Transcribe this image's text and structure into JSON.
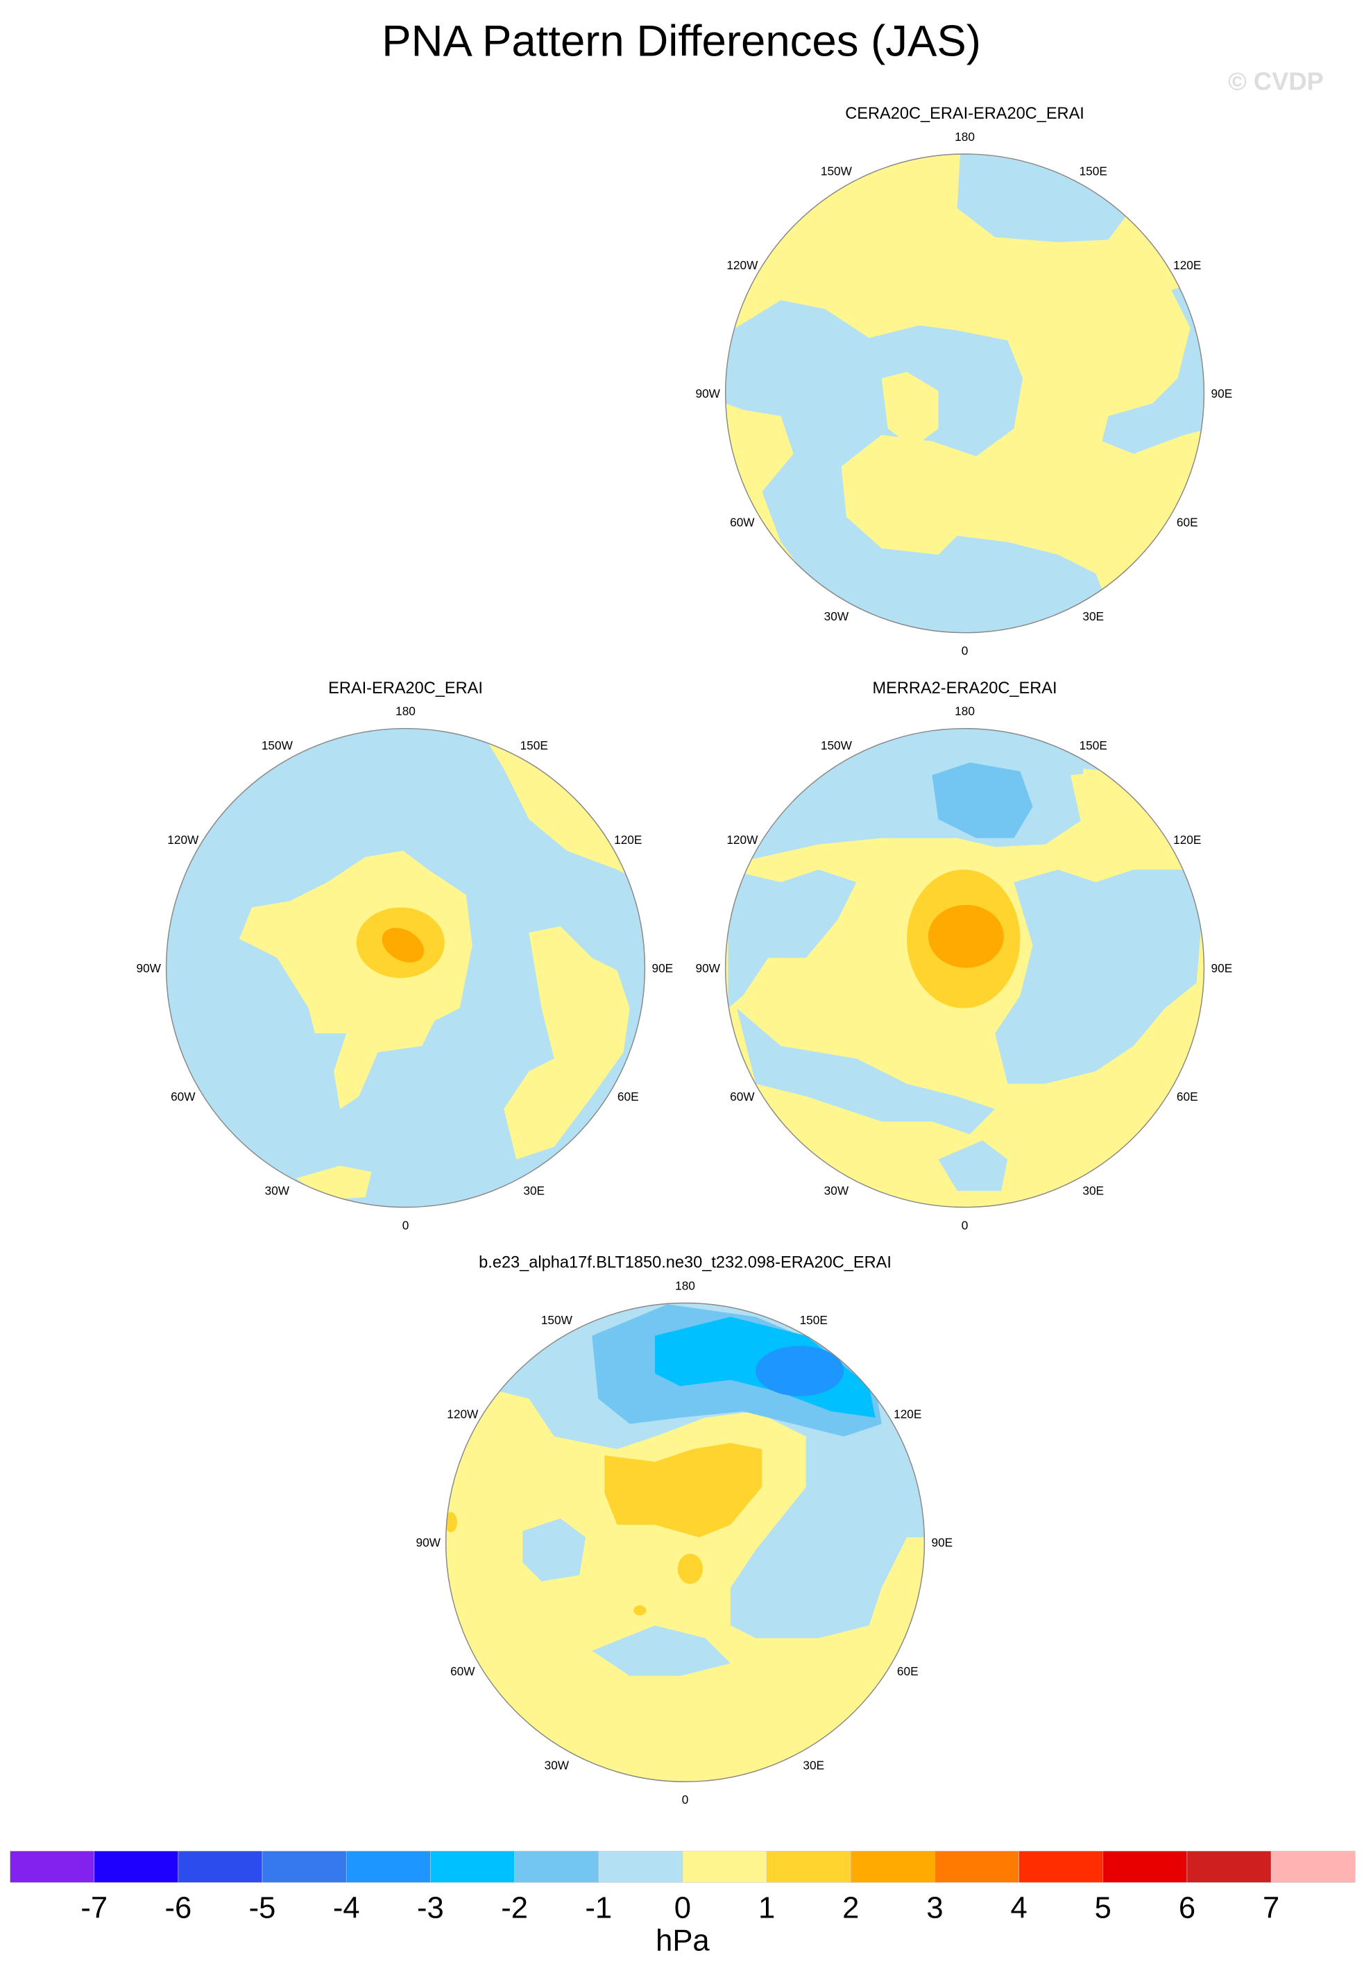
{
  "title": "PNA Pattern Differences (JAS)",
  "watermark": "© CVDP",
  "longitude_labels": [
    "180",
    "150E",
    "120E",
    "90E",
    "60E",
    "30E",
    "0",
    "30W",
    "60W",
    "90W",
    "120W",
    "150W"
  ],
  "panels": [
    {
      "title": "CERA20C_ERAI-ERA20C_ERAI"
    },
    {
      "title": "ERAI-ERA20C_ERAI"
    },
    {
      "title": "MERRA2-ERA20C_ERAI"
    },
    {
      "title": "b.e23_alpha17f.BLT1850.ne30_t232.098-ERA20C_ERAI"
    }
  ],
  "colorbar": {
    "unit": "hPa",
    "labels": [
      "-7",
      "-6",
      "-5",
      "-4",
      "-3",
      "-2",
      "-1",
      "0",
      "1",
      "2",
      "3",
      "4",
      "5",
      "6",
      "7"
    ],
    "colors": [
      "#8122EE",
      "#1E00FF",
      "#2D4CEE",
      "#3679EE",
      "#1E96FF",
      "#00C0FF",
      "#73C6F2",
      "#B4E0F3",
      "#FFF68F",
      "#FFD42F",
      "#FFAA00",
      "#FF7A00",
      "#FF2D00",
      "#E80000",
      "#D01F1F",
      "#FFB3B3"
    ]
  }
}
